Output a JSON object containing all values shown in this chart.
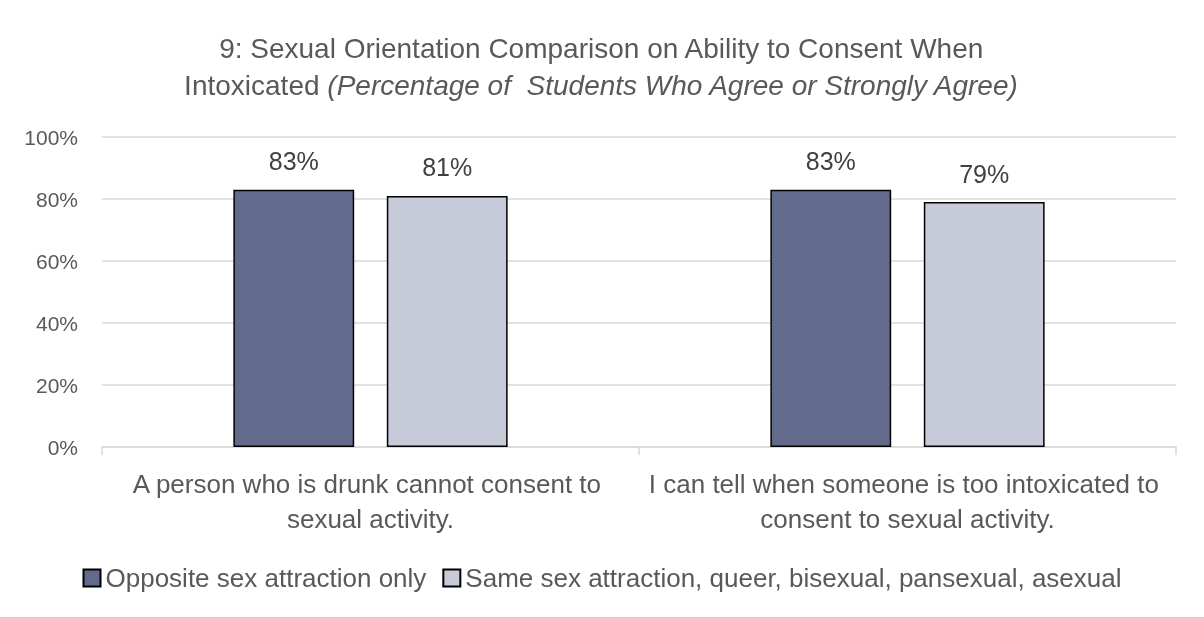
{
  "chart_data": {
    "type": "bar",
    "title": "9: Sexual Orientation Comparison on Ability to Consent When Intoxicated (Percentage of  Students Who Agree or Strongly Agree)",
    "categories": [
      "A person who is drunk cannot consent to sexual activity.",
      "I can tell when someone is too intoxicated to consent to sexual activity."
    ],
    "series": [
      {
        "name": "Opposite sex attraction only",
        "color": "#636b8c",
        "values": [
          83,
          83
        ],
        "value_labels": [
          "83%",
          "83%"
        ]
      },
      {
        "name": "Same sex attraction, queer, bisexual, pansexual, asexual",
        "color": "#c7cad9",
        "values": [
          81,
          79
        ],
        "value_labels": [
          "81%",
          "79%"
        ]
      }
    ],
    "ylim": [
      0,
      100
    ],
    "yticks": [
      {
        "value": 0,
        "label": "0%"
      },
      {
        "value": 20,
        "label": "20%"
      },
      {
        "value": 40,
        "label": "40%"
      },
      {
        "value": 60,
        "label": "60%"
      },
      {
        "value": 80,
        "label": "80%"
      },
      {
        "value": 100,
        "label": "100%"
      }
    ],
    "grid": "y",
    "legend": "bottom"
  }
}
